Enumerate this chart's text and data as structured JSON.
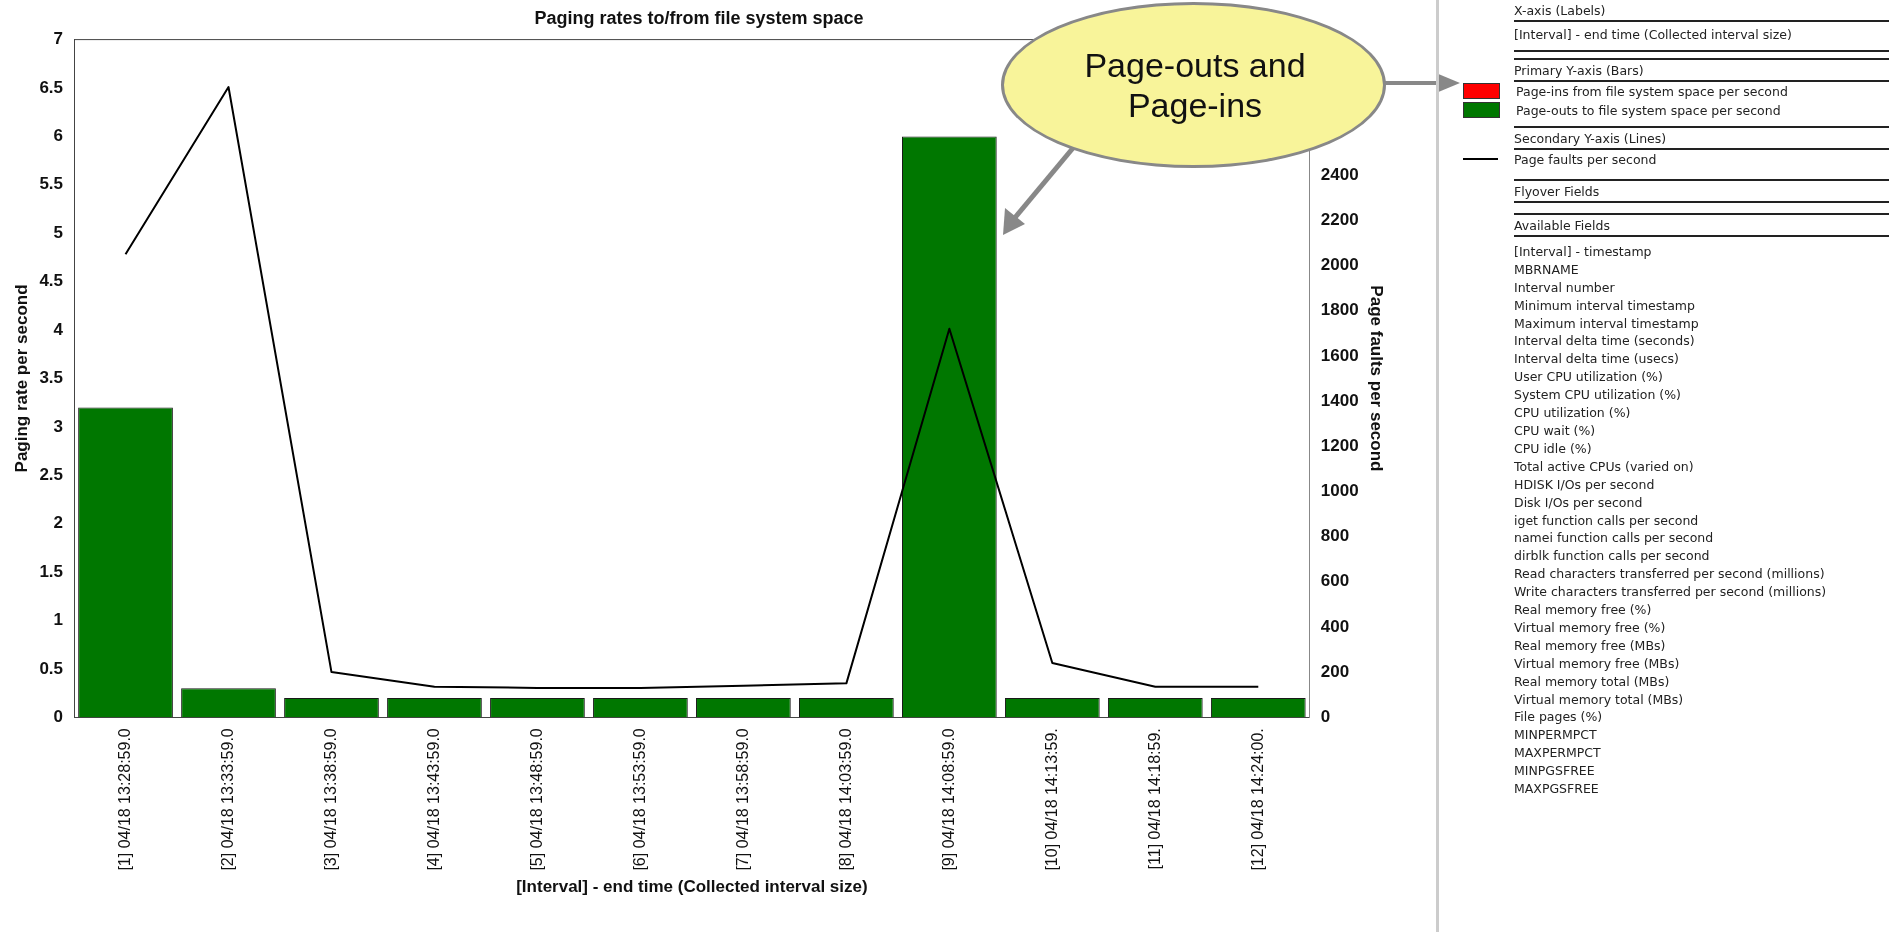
{
  "chart_data": [
    {
      "type": "bar",
      "title": "Paging rates to/from file system space",
      "xlabel": "[Interval] - end time (Collected interval size)",
      "ylabel": "Paging rate per second",
      "y2label": "Page faults per second",
      "categories": [
        "[1] 04/18 13:28:59.0",
        "[2] 04/18 13:33:59.0",
        "[3] 04/18 13:38:59.0",
        "[4] 04/18 13:43:59.0",
        "[5] 04/18 13:48:59.0",
        "[6] 04/18 13:53:59.0",
        "[7] 04/18 13:58:59.0",
        "[8] 04/18 14:03:59.0",
        "[9] 04/18 14:08:59.0",
        "[10] 04/18 14:13:59.",
        "[11] 04/18 14:18:59.",
        "[12] 04/18 14:24:00."
      ],
      "series": [
        {
          "name": "Page-ins from file system space per second",
          "color": "#ff0000",
          "values": [
            0,
            0,
            0,
            0,
            0,
            0,
            0,
            0,
            0,
            0,
            0,
            0
          ]
        },
        {
          "name": "Page-outs to file system space per second",
          "color": "#007700",
          "values": [
            3.2,
            0.3,
            0.2,
            0.2,
            0.2,
            0.2,
            0.2,
            0.2,
            6.0,
            0.2,
            0.2,
            0.2
          ]
        },
        {
          "name": "Page faults per second",
          "type": "line",
          "axis": "y2",
          "color": "#000000",
          "values": [
            2050,
            2790,
            200,
            135,
            130,
            130,
            140,
            150,
            1720,
            240,
            135,
            135
          ]
        }
      ],
      "stacked": true,
      "ylim": [
        0,
        7
      ],
      "yticks": [
        0,
        0.5,
        1,
        1.5,
        2,
        2.5,
        3,
        3.5,
        4,
        4.5,
        5,
        5.5,
        6,
        6.5,
        7
      ],
      "y2lim": [
        0,
        3000
      ],
      "y2ticks": [
        0,
        200,
        400,
        600,
        800,
        1000,
        1200,
        1400,
        1600,
        1800,
        2000,
        2200,
        2400
      ],
      "legend": "right",
      "marker": "none",
      "grid": false,
      "annotations": [
        "Page-outs and Page-ins"
      ]
    },
    {
      "type": "other",
      "annotations": [
        "X-axis (Labels)",
        "[Interval] - end time (Collected interval size)",
        "Primary Y-axis (Bars)",
        "Secondary Y-axis (Lines)",
        "Flyover Fields",
        "Available Fields",
        "[Interval] - timestamp",
        "MBRNAME",
        "Interval number",
        "Minimum interval timestamp",
        "Maximum interval timestamp",
        "Interval delta time (seconds)",
        "Interval delta time (usecs)",
        "User CPU utilization (%)",
        "System CPU utilization (%)",
        "CPU utilization (%)",
        "CPU wait (%)",
        "CPU idle (%)",
        "Total active CPUs (varied on)",
        "HDISK I/Os per second",
        "Disk I/Os per second",
        "iget function calls per second",
        "namei function calls per second",
        "dirblk function calls per second",
        "Read characters transferred per second (millions)",
        "Write characters transferred per second (millions)",
        "Real memory free (%)",
        "Virtual memory free (%)",
        "Real memory free (MBs)",
        "Virtual memory free (MBs)",
        "Real memory total (MBs)",
        "Virtual memory total (MBs)",
        "File pages (%)",
        "MINPERMPCT",
        "MAXPERMPCT",
        "MINPGSFREE",
        "MAXPGSFREE"
      ]
    }
  ]
}
